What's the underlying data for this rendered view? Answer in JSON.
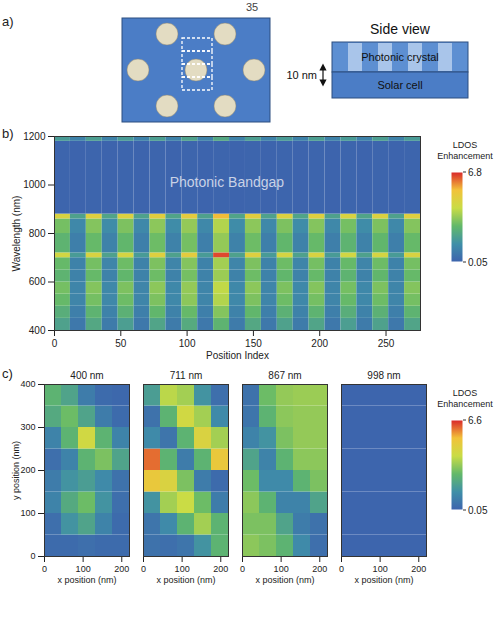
{
  "page_number": "35",
  "diagram": {
    "panel_label": "a)",
    "side_view_title": "Side view",
    "layers": [
      "Photonic crystal",
      "Solar cell"
    ],
    "scale_label": "10 nm"
  },
  "chart_data": [
    {
      "type": "heatmap",
      "panel_label": "b)",
      "x_label": "Position Index",
      "y_label": "Wavelength (nm)",
      "xlim": [
        0,
        276
      ],
      "ylim": [
        400,
        1200
      ],
      "xticks": [
        0,
        50,
        100,
        150,
        200,
        250
      ],
      "yticks": [
        400,
        600,
        800,
        1000,
        1200
      ],
      "x_edges": [
        0,
        12,
        24,
        36,
        48,
        60,
        72,
        84,
        96,
        108,
        120,
        132,
        144,
        156,
        168,
        180,
        192,
        204,
        216,
        228,
        240,
        252,
        264,
        276
      ],
      "y_edges": [
        400,
        450,
        500,
        550,
        600,
        650,
        700,
        720,
        800,
        860,
        880,
        1180,
        1200
      ],
      "values": [
        [
          2.0,
          0.7,
          2.2,
          0.8,
          1.9,
          0.7,
          2.1,
          0.8,
          2.3,
          0.7,
          2.6,
          0.8,
          2.2,
          0.7,
          2.0,
          0.8,
          2.1,
          0.7,
          1.9,
          0.8,
          2.0,
          0.7,
          2.1
        ],
        [
          2.4,
          0.9,
          2.6,
          1.0,
          2.5,
          0.9,
          2.7,
          1.0,
          2.8,
          0.9,
          3.2,
          1.0,
          2.7,
          0.9,
          2.5,
          1.0,
          2.6,
          0.9,
          2.4,
          1.0,
          2.5,
          0.9,
          2.6
        ],
        [
          2.8,
          1.1,
          3.0,
          1.2,
          2.9,
          1.1,
          3.1,
          1.2,
          3.3,
          1.1,
          3.8,
          1.2,
          3.1,
          1.1,
          2.9,
          1.2,
          3.0,
          1.1,
          2.8,
          1.2,
          2.9,
          1.1,
          3.0
        ],
        [
          3.0,
          1.1,
          3.2,
          1.2,
          3.1,
          1.1,
          3.3,
          1.2,
          3.4,
          1.1,
          4.0,
          1.2,
          3.3,
          1.1,
          3.1,
          1.2,
          3.2,
          1.1,
          3.0,
          1.2,
          3.1,
          1.1,
          3.2
        ],
        [
          2.6,
          1.0,
          2.8,
          1.0,
          2.7,
          1.0,
          2.9,
          1.0,
          3.0,
          1.0,
          3.5,
          1.0,
          2.9,
          1.0,
          2.7,
          1.0,
          2.8,
          1.0,
          2.6,
          1.0,
          2.7,
          1.0,
          2.8
        ],
        [
          2.8,
          1.0,
          3.0,
          1.1,
          2.9,
          1.0,
          3.1,
          1.1,
          3.2,
          1.0,
          3.6,
          1.1,
          3.1,
          1.0,
          2.9,
          1.1,
          3.0,
          1.0,
          2.8,
          1.1,
          2.9,
          1.0,
          3.0
        ],
        [
          4.4,
          1.8,
          4.6,
          2.0,
          4.5,
          1.8,
          4.8,
          2.0,
          5.0,
          1.8,
          6.5,
          2.0,
          4.8,
          1.8,
          4.5,
          2.0,
          4.6,
          1.8,
          4.4,
          2.0,
          4.5,
          1.8,
          4.6
        ],
        [
          2.6,
          0.9,
          2.8,
          1.0,
          2.7,
          0.9,
          2.9,
          1.0,
          3.0,
          0.9,
          3.4,
          1.0,
          2.9,
          0.9,
          2.7,
          1.0,
          2.8,
          0.9,
          2.6,
          1.0,
          2.7,
          0.9,
          2.8
        ],
        [
          3.0,
          1.2,
          3.2,
          1.3,
          3.1,
          1.2,
          3.3,
          1.3,
          3.4,
          1.2,
          3.8,
          1.3,
          3.3,
          1.2,
          3.1,
          1.3,
          3.2,
          1.2,
          3.0,
          1.3,
          3.1,
          1.2,
          3.2
        ],
        [
          4.6,
          2.0,
          4.8,
          2.1,
          4.7,
          2.0,
          4.9,
          2.1,
          5.0,
          2.0,
          5.5,
          2.1,
          4.9,
          2.0,
          4.7,
          2.1,
          4.8,
          2.0,
          4.6,
          2.1,
          4.7,
          2.0,
          4.8
        ],
        [
          0.1,
          0.08,
          0.1,
          0.08,
          0.1,
          0.08,
          0.1,
          0.08,
          0.1,
          0.08,
          0.1,
          0.08,
          0.1,
          0.08,
          0.1,
          0.08,
          0.1,
          0.08,
          0.1,
          0.08,
          0.1,
          0.08,
          0.1
        ],
        [
          1.8,
          1.0,
          1.9,
          1.0,
          1.8,
          1.0,
          1.9,
          1.0,
          2.0,
          1.0,
          2.2,
          1.0,
          1.9,
          1.0,
          1.8,
          1.0,
          1.9,
          1.0,
          1.8,
          1.0,
          1.9,
          1.0,
          1.8
        ]
      ],
      "annotations": [
        {
          "text": "Photonic Bandgap",
          "x": 130,
          "y": 1010
        }
      ],
      "colorbar": {
        "label": "LDOS Enhancement",
        "range": [
          0.05,
          6.8
        ],
        "ticks": [
          0.05,
          6.8
        ]
      },
      "legend": "right"
    },
    {
      "type": "heatmap",
      "panel_label": "c)",
      "x_label": "x position (nm)",
      "y_label": "y position (nm)",
      "xlim": [
        0,
        220
      ],
      "ylim": [
        0,
        400
      ],
      "xticks": [
        0,
        100,
        200
      ],
      "yticks": [
        0,
        100,
        200,
        300,
        400
      ],
      "x_edges": [
        0,
        44,
        88,
        132,
        176,
        220
      ],
      "y_edges": [
        0,
        50,
        100,
        150,
        200,
        250,
        300,
        350,
        400
      ],
      "maps": [
        {
          "title": "400 nm",
          "values": [
            [
              0.3,
              0.3,
              0.4,
              0.3,
              0.3
            ],
            [
              0.4,
              1.5,
              2.0,
              1.0,
              0.3
            ],
            [
              1.0,
              2.2,
              2.8,
              1.5,
              0.4
            ],
            [
              0.8,
              1.5,
              1.8,
              1.2,
              0.5
            ],
            [
              0.4,
              1.0,
              2.5,
              3.0,
              2.0
            ],
            [
              1.0,
              2.5,
              4.2,
              2.5,
              1.0
            ],
            [
              2.2,
              2.8,
              2.0,
              0.8,
              0.3
            ],
            [
              2.5,
              2.0,
              0.8,
              0.3,
              0.2
            ]
          ]
        },
        {
          "title": "711 nm",
          "values": [
            [
              0.5,
              0.4,
              0.6,
              1.5,
              2.5
            ],
            [
              0.6,
              1.2,
              2.5,
              3.5,
              2.5
            ],
            [
              1.5,
              3.5,
              4.0,
              2.8,
              0.8
            ],
            [
              5.0,
              4.5,
              3.0,
              0.8,
              0.3
            ],
            [
              6.0,
              2.5,
              0.8,
              2.5,
              5.0
            ],
            [
              1.2,
              0.6,
              2.5,
              4.5,
              3.5
            ],
            [
              0.5,
              2.5,
              4.2,
              3.5,
              1.2
            ],
            [
              1.8,
              3.8,
              3.5,
              1.5,
              0.4
            ]
          ]
        },
        {
          "title": "867 nm",
          "values": [
            [
              3.2,
              3.0,
              2.5,
              1.2,
              0.4
            ],
            [
              3.0,
              3.0,
              2.0,
              0.8,
              0.5
            ],
            [
              3.2,
              2.5,
              1.0,
              1.0,
              2.0
            ],
            [
              2.8,
              1.2,
              1.2,
              2.5,
              3.0
            ],
            [
              2.0,
              1.0,
              2.5,
              3.2,
              3.2
            ],
            [
              1.0,
              1.5,
              3.0,
              3.3,
              3.3
            ],
            [
              0.6,
              2.5,
              3.2,
              3.3,
              3.3
            ],
            [
              0.5,
              2.8,
              3.3,
              3.4,
              3.4
            ]
          ]
        },
        {
          "title": "998 nm",
          "values": [
            [
              0.1,
              0.1,
              0.1,
              0.1,
              0.1
            ],
            [
              0.1,
              0.1,
              0.1,
              0.1,
              0.1
            ],
            [
              0.1,
              0.1,
              0.1,
              0.1,
              0.1
            ],
            [
              0.1,
              0.1,
              0.1,
              0.1,
              0.1
            ],
            [
              0.1,
              0.1,
              0.1,
              0.1,
              0.1
            ],
            [
              0.1,
              0.1,
              0.1,
              0.1,
              0.1
            ],
            [
              0.1,
              0.1,
              0.1,
              0.1,
              0.1
            ],
            [
              0.1,
              0.1,
              0.1,
              0.1,
              0.1
            ]
          ]
        }
      ],
      "colorbar": {
        "label": "LDOS Enhancement",
        "range": [
          0.05,
          6.6
        ],
        "ticks": [
          0.05,
          6.6
        ]
      },
      "legend": "right"
    }
  ]
}
